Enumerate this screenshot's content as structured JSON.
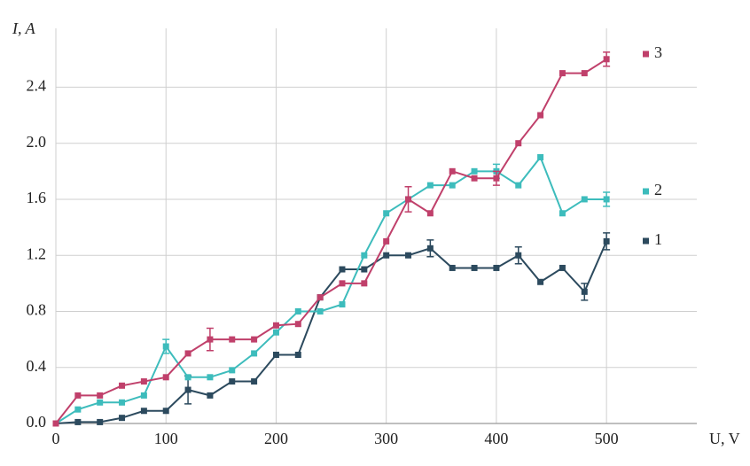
{
  "chart_data": {
    "type": "line",
    "x_label": "U, V",
    "y_label": "I, A",
    "x": [
      0,
      20,
      40,
      60,
      80,
      100,
      120,
      140,
      160,
      180,
      200,
      220,
      240,
      260,
      280,
      300,
      320,
      340,
      360,
      380,
      400,
      420,
      440,
      460,
      480,
      500
    ],
    "series": [
      {
        "name": "1",
        "color": "#2c4a5e",
        "values": [
          0,
          0.01,
          0.01,
          0.04,
          0.09,
          0.09,
          0.24,
          0.2,
          0.3,
          0.3,
          0.49,
          0.49,
          0.9,
          1.1,
          1.1,
          1.2,
          1.2,
          1.25,
          1.11,
          1.11,
          1.11,
          1.2,
          1.01,
          1.11,
          0.94,
          1.3
        ],
        "errors": [
          null,
          null,
          null,
          null,
          null,
          null,
          0.1,
          null,
          null,
          null,
          null,
          null,
          null,
          null,
          null,
          null,
          null,
          0.06,
          null,
          null,
          null,
          0.06,
          null,
          null,
          0.06,
          0.06
        ]
      },
      {
        "name": "2",
        "color": "#3dbcbc",
        "values": [
          0,
          0.1,
          0.15,
          0.15,
          0.2,
          0.55,
          0.33,
          0.33,
          0.38,
          0.5,
          0.65,
          0.8,
          0.8,
          0.85,
          1.2,
          1.5,
          1.6,
          1.7,
          1.7,
          1.8,
          1.8,
          1.7,
          1.9,
          1.5,
          1.6,
          1.6
        ],
        "errors": [
          null,
          null,
          null,
          null,
          null,
          0.05,
          null,
          null,
          null,
          null,
          null,
          null,
          null,
          null,
          null,
          null,
          null,
          null,
          null,
          null,
          0.05,
          null,
          null,
          null,
          null,
          0.05
        ]
      },
      {
        "name": "3",
        "color": "#c0406b",
        "values": [
          0,
          0.2,
          0.2,
          0.27,
          0.3,
          0.33,
          0.5,
          0.6,
          0.6,
          0.6,
          0.7,
          0.71,
          0.9,
          1.0,
          1.0,
          1.3,
          1.6,
          1.5,
          1.8,
          1.75,
          1.75,
          2.0,
          2.2,
          2.5,
          2.5,
          2.6
        ],
        "errors": [
          null,
          null,
          null,
          null,
          null,
          null,
          null,
          0.08,
          null,
          null,
          null,
          null,
          null,
          null,
          null,
          null,
          0.09,
          null,
          null,
          null,
          0.05,
          null,
          null,
          null,
          null,
          0.05
        ]
      }
    ],
    "xlim": [
      0,
      582
    ],
    "xticks": [
      0,
      100,
      200,
      300,
      400,
      500
    ],
    "ylim": [
      0,
      2.82
    ],
    "yticks": [
      {
        "value": 0,
        "label": "0.0"
      },
      0.4,
      0.8,
      1.2,
      1.6,
      {
        "value": 2,
        "label": "2.0"
      },
      2.4
    ],
    "grid": true
  }
}
